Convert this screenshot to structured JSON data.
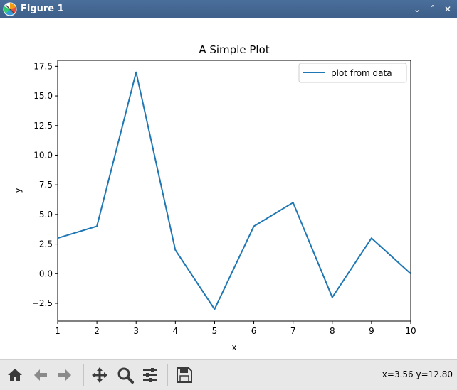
{
  "window": {
    "title": "Figure 1",
    "controls": {
      "minimize": "⌄",
      "maximize": "˄",
      "close": "✕"
    }
  },
  "colors": {
    "line": "#1f77b4",
    "titlebar": "#4a6f9a"
  },
  "toolbar": {
    "buttons": [
      "home-icon",
      "back-arrow-icon",
      "forward-arrow-icon",
      "pan-move-icon",
      "zoom-icon",
      "configure-subplots-icon",
      "save-icon"
    ],
    "coords": "x=3.56 y=12.80"
  },
  "chart_data": {
    "type": "line",
    "title": "A Simple Plot",
    "xlabel": "x",
    "ylabel": "y",
    "x": [
      1,
      2,
      3,
      4,
      5,
      6,
      7,
      8,
      9,
      10
    ],
    "series": [
      {
        "name": "plot from data",
        "values": [
          3,
          4,
          17,
          2,
          -3,
          4,
          6,
          -2,
          3,
          0
        ]
      }
    ],
    "xlim": [
      1,
      10
    ],
    "ylim": [
      -4,
      18
    ],
    "xticks": [
      "1",
      "2",
      "3",
      "4",
      "5",
      "6",
      "7",
      "8",
      "9",
      "10"
    ],
    "yticks": [
      "−2.5",
      "0.0",
      "2.5",
      "5.0",
      "7.5",
      "10.0",
      "12.5",
      "15.0",
      "17.5"
    ],
    "ytick_values": [
      -2.5,
      0,
      2.5,
      5,
      7.5,
      10,
      12.5,
      15,
      17.5
    ],
    "grid": false,
    "legend_position": "top-right"
  }
}
